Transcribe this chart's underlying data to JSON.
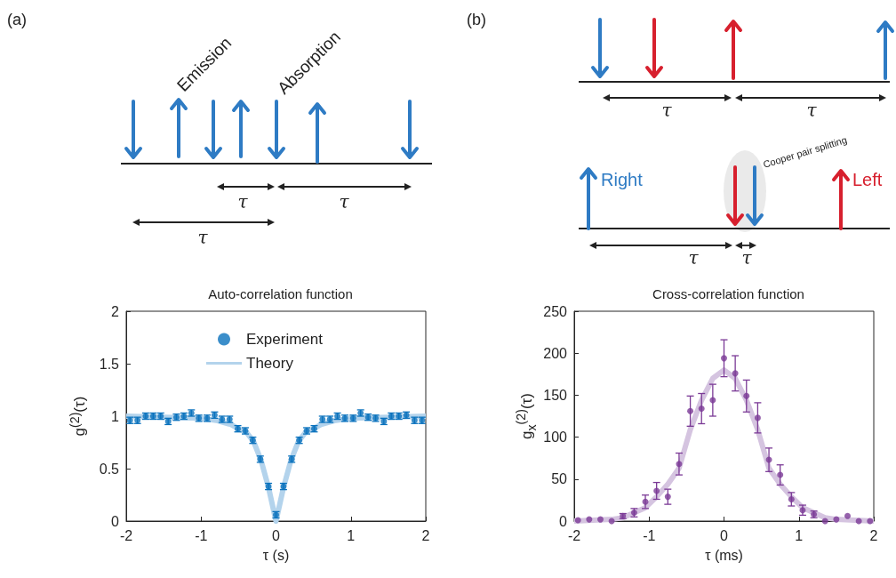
{
  "chart_data": [
    {
      "type": "scatter",
      "title": "Auto-correlation function",
      "xlabel": "τ (s)",
      "ylabel": "g$^{(2)}$(τ)",
      "annotations": [
        "(a)",
        "Emission",
        "Absorption",
        "τ",
        "τ",
        "τ"
      ],
      "xlim": [
        -2,
        2
      ],
      "xticks": [
        -2,
        -1,
        0,
        1,
        2
      ],
      "ylim": [
        0,
        2
      ],
      "yticks": [
        0,
        0.5,
        1,
        1.5,
        2
      ],
      "legend": "top",
      "series": [
        {
          "name": "Experiment",
          "marker": "circle",
          "color": "#0a72bd",
          "x": [
            -1.95,
            -1.85,
            -1.74,
            -1.64,
            -1.54,
            -1.44,
            -1.33,
            -1.23,
            -1.13,
            -1.03,
            -0.92,
            -0.82,
            -0.72,
            -0.62,
            -0.51,
            -0.41,
            -0.31,
            -0.21,
            -0.1,
            0,
            0.1,
            0.21,
            0.31,
            0.41,
            0.51,
            0.62,
            0.72,
            0.82,
            0.92,
            1.03,
            1.13,
            1.23,
            1.33,
            1.44,
            1.54,
            1.64,
            1.74,
            1.85,
            1.95
          ],
          "values": [
            0.96,
            0.96,
            1.0,
            1.0,
            1.0,
            0.95,
            0.99,
            1.0,
            1.03,
            0.98,
            0.98,
            1.01,
            0.97,
            0.97,
            0.88,
            0.86,
            0.77,
            0.59,
            0.33,
            0.06,
            0.33,
            0.59,
            0.77,
            0.86,
            0.88,
            0.97,
            0.97,
            1.0,
            0.98,
            0.98,
            1.03,
            0.99,
            0.98,
            0.95,
            1.0,
            1.0,
            1.01,
            0.96,
            0.96
          ],
          "errors": [
            0.03,
            0.03,
            0.03,
            0.03,
            0.03,
            0.03,
            0.03,
            0.03,
            0.03,
            0.03,
            0.03,
            0.03,
            0.03,
            0.03,
            0.03,
            0.03,
            0.03,
            0.03,
            0.03,
            0.03,
            0.03,
            0.03,
            0.03,
            0.03,
            0.03,
            0.03,
            0.03,
            0.03,
            0.03,
            0.03,
            0.03,
            0.03,
            0.03,
            0.03,
            0.03,
            0.03,
            0.03,
            0.03,
            0.03
          ]
        },
        {
          "name": "Theory",
          "type": "line",
          "marker": "none",
          "color": "#b3d3ec",
          "x": [
            -2,
            -1.5,
            -1,
            -0.8,
            -0.6,
            -0.5,
            -0.4,
            -0.3,
            -0.2,
            -0.1,
            0,
            0.1,
            0.2,
            0.3,
            0.4,
            0.5,
            0.6,
            0.8,
            1,
            1.5,
            2
          ],
          "values": [
            1,
            0.99,
            0.98,
            0.96,
            0.92,
            0.88,
            0.85,
            0.76,
            0.58,
            0.32,
            0,
            0.32,
            0.58,
            0.76,
            0.85,
            0.88,
            0.92,
            0.96,
            0.98,
            0.99,
            1
          ]
        }
      ]
    },
    {
      "type": "scatter",
      "title": "Cross-correlation function",
      "xlabel": "τ (ms)",
      "ylabel": "g$_{x}$$^{(2)}$(τ)",
      "annotations": [
        "(b)",
        "τ",
        "τ",
        "Cooper pair splitting",
        "Right",
        "Left",
        "τ",
        "τ"
      ],
      "xlim": [
        -2,
        2
      ],
      "xticks": [
        -2,
        -1,
        0,
        1,
        2
      ],
      "ylim": [
        0,
        250
      ],
      "yticks": [
        0,
        50,
        100,
        150,
        200,
        250
      ],
      "series": [
        {
          "marker": "circle",
          "color": "#7b3a96",
          "x": [
            -1.95,
            -1.8,
            -1.65,
            -1.5,
            -1.35,
            -1.2,
            -1.05,
            -0.9,
            -0.75,
            -0.6,
            -0.45,
            -0.3,
            -0.15,
            0,
            0.15,
            0.3,
            0.45,
            0.6,
            0.75,
            0.9,
            1.05,
            1.2,
            1.35,
            1.5,
            1.65,
            1.8,
            1.95
          ],
          "values": [
            1,
            2,
            2,
            0,
            6,
            10,
            23,
            36,
            29,
            68,
            131,
            134,
            144,
            194,
            176,
            149,
            123,
            73,
            55,
            26,
            13,
            8,
            0,
            2,
            6,
            0,
            0
          ],
          "errors": [
            null,
            null,
            null,
            null,
            3,
            5,
            8,
            10,
            9,
            13,
            18,
            18,
            19,
            22,
            21,
            19,
            18,
            14,
            12,
            8,
            6,
            4,
            null,
            null,
            null,
            null,
            null
          ]
        },
        {
          "type": "line",
          "marker": "none",
          "color": "#d5c4e0",
          "x": [
            -2,
            -1.5,
            -1.35,
            -1.2,
            -1.05,
            -0.9,
            -0.75,
            -0.6,
            -0.45,
            -0.3,
            -0.15,
            0,
            0.15,
            0.3,
            0.45,
            0.6,
            0.75,
            0.9,
            1.05,
            1.2,
            1.35,
            1.5,
            2
          ],
          "values": [
            0,
            2,
            4,
            10,
            16,
            29,
            44,
            63,
            109,
            144,
            170,
            180,
            170,
            144,
            109,
            63,
            44,
            29,
            16,
            10,
            4,
            2,
            0
          ]
        }
      ]
    }
  ]
}
